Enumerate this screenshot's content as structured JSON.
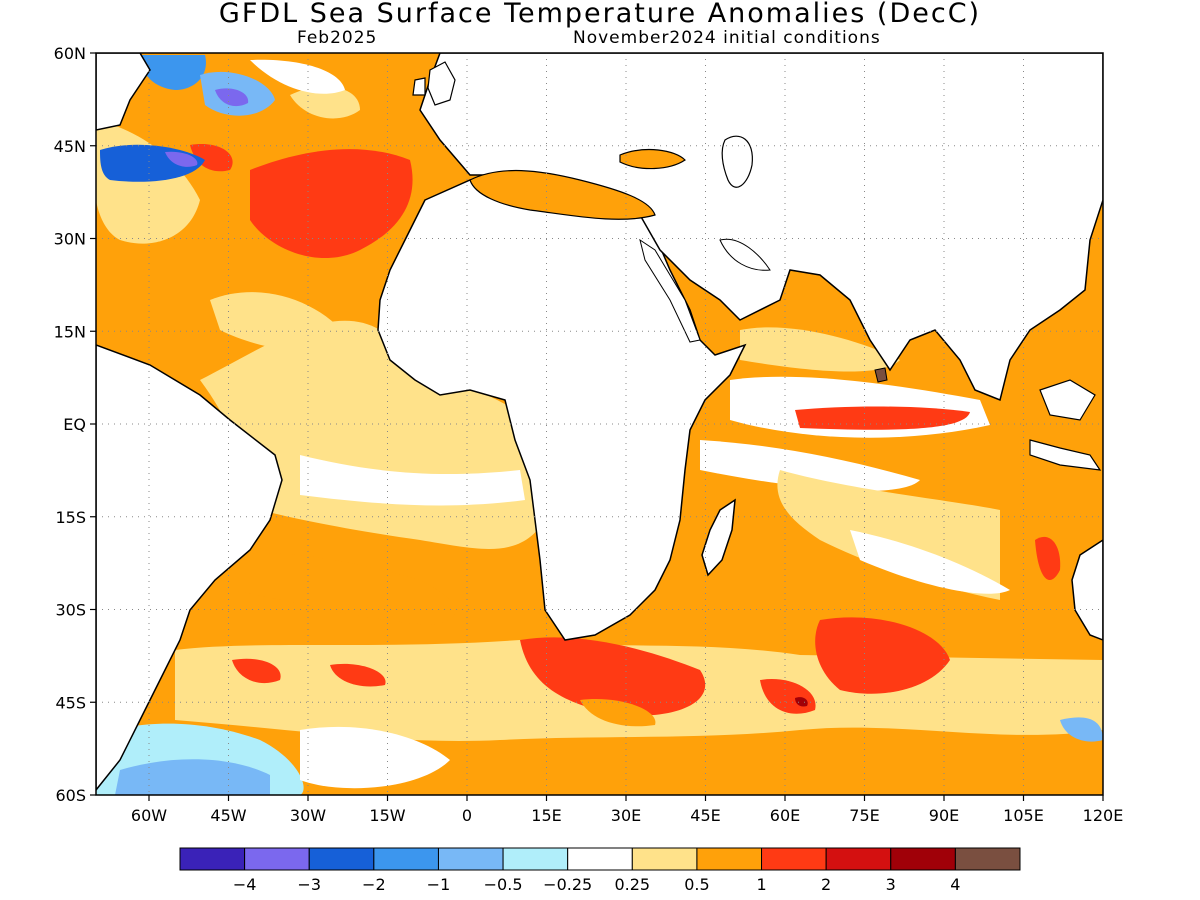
{
  "title": "GFDL Sea Surface Temperature Anomalies (DecC)",
  "subtitle_left": "Feb2025",
  "subtitle_right": "November2024 initial conditions",
  "map": {
    "lon_range": [
      -70,
      120
    ],
    "lat_range": [
      -60,
      60
    ],
    "lat_ticks": [
      {
        "value": 60,
        "label": "60N"
      },
      {
        "value": 45,
        "label": "45N"
      },
      {
        "value": 30,
        "label": "30N"
      },
      {
        "value": 15,
        "label": "15N"
      },
      {
        "value": 0,
        "label": "EQ"
      },
      {
        "value": -15,
        "label": "15S"
      },
      {
        "value": -30,
        "label": "30S"
      },
      {
        "value": -45,
        "label": "45S"
      },
      {
        "value": -60,
        "label": "60S"
      }
    ],
    "lon_ticks": [
      {
        "value": -60,
        "label": "60W"
      },
      {
        "value": -45,
        "label": "45W"
      },
      {
        "value": -30,
        "label": "30W"
      },
      {
        "value": -15,
        "label": "15W"
      },
      {
        "value": 0,
        "label": "0"
      },
      {
        "value": 15,
        "label": "15E"
      },
      {
        "value": 30,
        "label": "30E"
      },
      {
        "value": 45,
        "label": "45E"
      },
      {
        "value": 60,
        "label": "60E"
      },
      {
        "value": 75,
        "label": "75E"
      },
      {
        "value": 90,
        "label": "90E"
      },
      {
        "value": 105,
        "label": "105E"
      },
      {
        "value": 120,
        "label": "120E"
      }
    ],
    "grid": true
  },
  "colorbar": {
    "colors": [
      "#3a22b8",
      "#7b68ee",
      "#1660d8",
      "#3c96ee",
      "#78b8f6",
      "#b0eefa",
      "#ffffff",
      "#ffe28a",
      "#ffa10a",
      "#ff3a14",
      "#d41010",
      "#a00008",
      "#7a4f40"
    ],
    "labels": [
      "−4",
      "−3",
      "−2",
      "−1",
      "−0.5",
      "−0.25",
      "0.25",
      "0.5",
      "1",
      "2",
      "3",
      "4"
    ]
  }
}
